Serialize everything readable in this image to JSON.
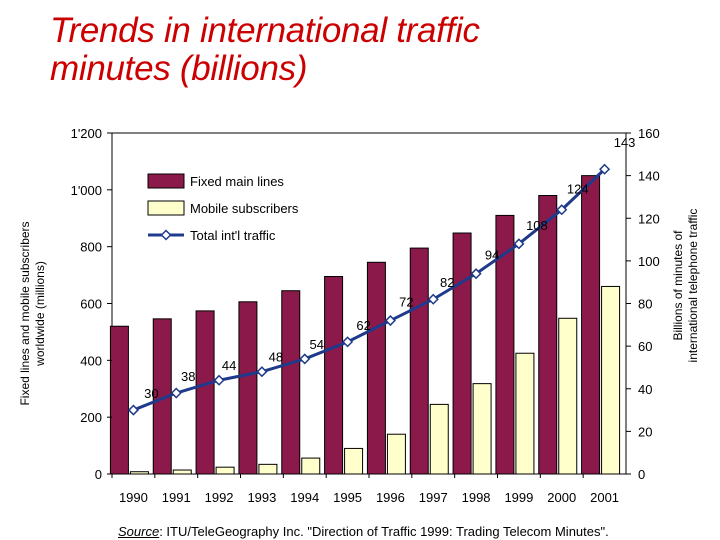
{
  "title_lines": [
    "Trends in international traffic",
    "minutes (billions)"
  ],
  "chart_data": {
    "type": "bar",
    "categories": [
      "1990",
      "1991",
      "1992",
      "1993",
      "1994",
      "1995",
      "1996",
      "1997",
      "1998",
      "1999",
      "2000",
      "2001"
    ],
    "series": [
      {
        "name": "Fixed main lines",
        "kind": "bar",
        "axis": "left",
        "color": "#8b1a4a",
        "values": [
          520,
          546,
          574,
          606,
          645,
          695,
          745,
          795,
          848,
          910,
          980,
          1050
        ]
      },
      {
        "name": "Mobile subscribers",
        "kind": "bar",
        "axis": "left",
        "color": "#ffffcc",
        "values": [
          8,
          14,
          24,
          34,
          56,
          90,
          140,
          245,
          318,
          425,
          548,
          660
        ]
      },
      {
        "name": "Total int'l traffic",
        "kind": "line",
        "axis": "right",
        "color": "#1f3a8a",
        "values": [
          30,
          38,
          44,
          48,
          54,
          62,
          72,
          82,
          94,
          108,
          124,
          143
        ],
        "labels": [
          "30",
          "38",
          "44",
          "48",
          "54",
          "62",
          "72",
          "82",
          "94",
          "108",
          "124",
          "143"
        ]
      }
    ],
    "y_left": {
      "label": "Fixed lines and mobile subscribers worldwide (millions)",
      "min": 0,
      "max": 1200,
      "ticks": [
        0,
        200,
        400,
        600,
        800,
        1000,
        1200
      ],
      "tick_labels": [
        "0",
        "200",
        "400",
        "600",
        "800",
        "1'000",
        "1'200"
      ]
    },
    "y_right": {
      "label": "Billions of minutes of international telephone traffic",
      "min": 0,
      "max": 160,
      "ticks": [
        0,
        20,
        40,
        60,
        80,
        100,
        120,
        140,
        160
      ],
      "tick_labels": [
        "0",
        "20",
        "40",
        "60",
        "80",
        "100",
        "120",
        "140",
        "160"
      ]
    },
    "grid": false,
    "legend_position": "top-left"
  },
  "source": {
    "label": "Source",
    "text": ": ITU/TeleGeography Inc. \"Direction of Traffic 1999: Trading Telecom Minutes\"."
  }
}
